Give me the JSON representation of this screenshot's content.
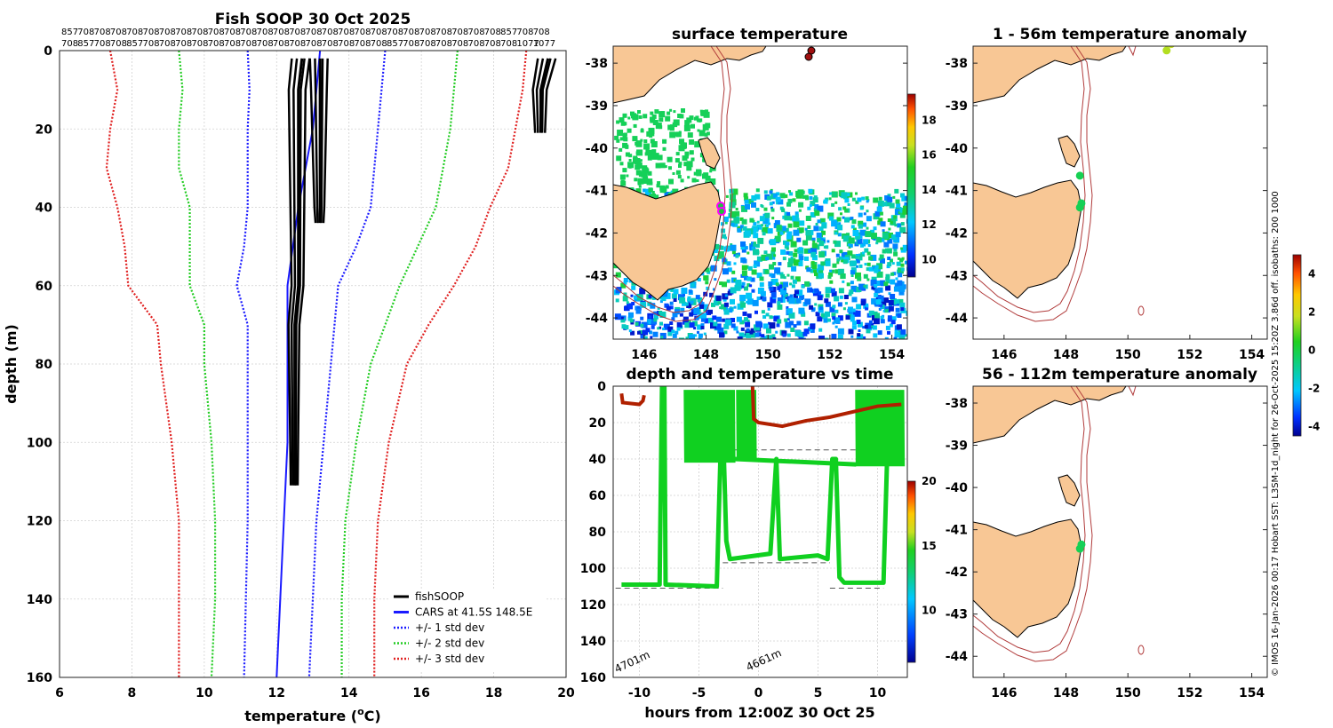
{
  "chart_data": [
    {
      "type": "line",
      "id": "profile",
      "title": "Fish SOOP 30 Oct 2025",
      "xlabel": "temperature (",
      "xlabel_sup": "o",
      "xlabel_end": "C)",
      "ylabel": "depth (m)",
      "xlim": [
        6,
        20
      ],
      "ylim": [
        160,
        0
      ],
      "xticks": [
        6,
        8,
        10,
        12,
        14,
        16,
        18,
        20
      ],
      "yticks": [
        0,
        20,
        40,
        60,
        80,
        100,
        120,
        140,
        160
      ],
      "top_labels_row1": [
        "857",
        "708",
        "708",
        "708",
        "708",
        "708",
        "708",
        "708",
        "708",
        "708",
        "708",
        "708",
        "708",
        "708",
        "708",
        "708",
        "708",
        "708",
        "708",
        "708",
        "708",
        "708",
        "708",
        "708",
        "708",
        "708",
        "708",
        "857",
        "708",
        "708"
      ],
      "top_labels_row2": [
        "708",
        "857",
        "708",
        "708",
        "857",
        "708",
        "708",
        "708",
        "708",
        "708",
        "708",
        "708",
        "708",
        "708",
        "708",
        "708",
        "708",
        "708",
        "708",
        "708",
        "857",
        "708",
        "708",
        "708",
        "708",
        "708",
        "708",
        "708",
        "1077",
        "1077"
      ],
      "legend": [
        {
          "label": "fishSOOP",
          "color": "#000000",
          "style": "solid"
        },
        {
          "label": "CARS at 41.5S 148.5E",
          "color": "#1a1aff",
          "style": "solid"
        },
        {
          "label": "+/- 1 std dev",
          "color": "#1a1aff",
          "style": "dotted"
        },
        {
          "label": "+/- 2 std dev",
          "color": "#22cc22",
          "style": "dotted"
        },
        {
          "label": "+/- 3 std dev",
          "color": "#e02020",
          "style": "dotted"
        }
      ],
      "series": [
        {
          "name": "CARS mean",
          "color": "#1a1aff",
          "style": "solid",
          "depth": [
            0,
            10,
            20,
            40,
            60,
            80,
            100,
            120,
            140,
            160
          ],
          "temp": [
            13.2,
            13.1,
            13.0,
            12.6,
            12.3,
            12.3,
            12.3,
            12.2,
            12.1,
            12.0
          ]
        },
        {
          "name": "-1 std",
          "color": "#1a1aff",
          "style": "dotted",
          "depth": [
            0,
            10,
            20,
            30,
            40,
            50,
            60,
            70,
            80,
            100,
            120,
            140,
            160
          ],
          "temp": [
            11.2,
            11.25,
            11.2,
            11.2,
            11.2,
            11.1,
            10.9,
            11.2,
            11.2,
            11.2,
            11.2,
            11.15,
            11.1
          ]
        },
        {
          "name": "+1 std",
          "color": "#1a1aff",
          "style": "dotted",
          "depth": [
            0,
            10,
            20,
            30,
            40,
            50,
            60,
            70,
            80,
            100,
            120,
            140,
            160
          ],
          "temp": [
            15.0,
            14.9,
            14.8,
            14.7,
            14.6,
            14.2,
            13.7,
            13.6,
            13.5,
            13.3,
            13.1,
            13.0,
            12.9
          ]
        },
        {
          "name": "-2 std",
          "color": "#22cc22",
          "style": "dotted",
          "depth": [
            0,
            10,
            20,
            30,
            40,
            50,
            60,
            70,
            80,
            100,
            120,
            140,
            160
          ],
          "temp": [
            9.3,
            9.4,
            9.3,
            9.3,
            9.6,
            9.6,
            9.6,
            10.0,
            10.0,
            10.2,
            10.3,
            10.3,
            10.2
          ]
        },
        {
          "name": "+2 std",
          "color": "#22cc22",
          "style": "dotted",
          "depth": [
            0,
            10,
            20,
            30,
            40,
            50,
            60,
            70,
            80,
            100,
            120,
            140,
            160
          ],
          "temp": [
            17.0,
            16.9,
            16.8,
            16.6,
            16.4,
            15.9,
            15.4,
            15.0,
            14.6,
            14.2,
            13.9,
            13.8,
            13.8
          ]
        },
        {
          "name": "-3 std",
          "color": "#e02020",
          "style": "dotted",
          "depth": [
            0,
            10,
            20,
            30,
            40,
            50,
            60,
            70,
            80,
            100,
            120,
            140,
            160
          ],
          "temp": [
            7.4,
            7.6,
            7.4,
            7.3,
            7.6,
            7.8,
            7.9,
            8.7,
            8.8,
            9.1,
            9.3,
            9.3,
            9.3
          ]
        },
        {
          "name": "+3 std",
          "color": "#e02020",
          "style": "dotted",
          "depth": [
            0,
            10,
            20,
            30,
            40,
            50,
            60,
            70,
            80,
            100,
            120,
            140,
            160
          ],
          "temp": [
            18.9,
            18.8,
            18.6,
            18.4,
            17.9,
            17.5,
            16.9,
            16.2,
            15.6,
            15.1,
            14.8,
            14.7,
            14.7
          ]
        },
        {
          "name": "fishSOOP profiles",
          "color": "#000000",
          "style": "solid",
          "depth": [
            2,
            10,
            20,
            30,
            40,
            50,
            60,
            70,
            80,
            90,
            100,
            111
          ],
          "temp": [
            12.7,
            12.6,
            12.6,
            12.6,
            12.6,
            12.6,
            12.6,
            12.5,
            12.5,
            12.5,
            12.5,
            12.5
          ]
        },
        {
          "name": "fishSOOP shallow",
          "color": "#000000",
          "style": "solid",
          "depth": [
            2,
            10,
            20,
            30,
            40,
            44
          ],
          "temp": [
            13.2,
            13.2,
            13.2,
            13.2,
            13.2,
            13.2
          ]
        },
        {
          "name": "fishSOOP warm",
          "color": "#000000",
          "style": "solid",
          "depth": [
            2,
            10,
            21
          ],
          "temp": [
            19.5,
            19.3,
            19.3
          ]
        }
      ]
    },
    {
      "type": "heatmap",
      "id": "sst_map",
      "title": "surface temperature",
      "xticks": [
        146,
        148,
        150,
        152,
        154
      ],
      "yticks": [
        -38,
        -39,
        -40,
        -41,
        -42,
        -43,
        -44
      ],
      "lon_range": [
        145,
        154.5
      ],
      "lat_range": [
        -44.5,
        -37.6
      ],
      "colorbar_ticks": [
        10,
        12,
        14,
        16,
        18
      ],
      "colorbar_range": [
        9,
        19.5
      ]
    },
    {
      "type": "scatter",
      "id": "depth_time",
      "title": "depth and temperature vs time",
      "xlabel": "hours from 12:00Z 30 Oct 25",
      "xticks": [
        -10,
        -5,
        0,
        5,
        10
      ],
      "yticks": [
        0,
        20,
        40,
        60,
        80,
        100,
        120,
        140,
        160
      ],
      "xlim": [
        -12.2,
        12.5
      ],
      "ylim": [
        160,
        0
      ],
      "colorbar_ticks": [
        10,
        15,
        20
      ],
      "colorbar_range": [
        6,
        20
      ],
      "annotations": [
        "4701m",
        "4661m"
      ]
    },
    {
      "type": "scatter",
      "id": "anom_1_56",
      "title": "1 - 56m temperature anomaly",
      "xticks": [
        146,
        148,
        150,
        152,
        154
      ],
      "yticks": [
        -38,
        -39,
        -40,
        -41,
        -42,
        -43,
        -44
      ],
      "points": [
        {
          "lon": 151.4,
          "lat": -37.55,
          "anom": 2.3
        },
        {
          "lon": 151.25,
          "lat": -37.7,
          "anom": 2.2
        },
        {
          "lon": 148.45,
          "lat": -40.65,
          "anom": 0.3
        },
        {
          "lon": 148.5,
          "lat": -41.3,
          "anom": 0.2
        },
        {
          "lon": 148.45,
          "lat": -41.4,
          "anom": 0.3
        }
      ]
    },
    {
      "type": "scatter",
      "id": "anom_56_112",
      "title": "56 - 112m temperature anomaly",
      "xticks": [
        146,
        148,
        150,
        152,
        154
      ],
      "yticks": [
        -38,
        -39,
        -40,
        -41,
        -42,
        -43,
        -44
      ],
      "points": [
        {
          "lon": 148.5,
          "lat": -41.35,
          "anom": 0.2
        },
        {
          "lon": 148.45,
          "lat": -41.45,
          "anom": 0.3
        }
      ],
      "colorbar_ticks": [
        4,
        2,
        0,
        -2,
        -4
      ],
      "colorbar_range": [
        -4.5,
        5
      ]
    }
  ],
  "side_note": "© IMOS 16-Jan-2026 00:17 Hobart SST: L3SM-1d_night for 26-Oct-2025 15:20Z 3.86d off. isobaths: 200  1000"
}
